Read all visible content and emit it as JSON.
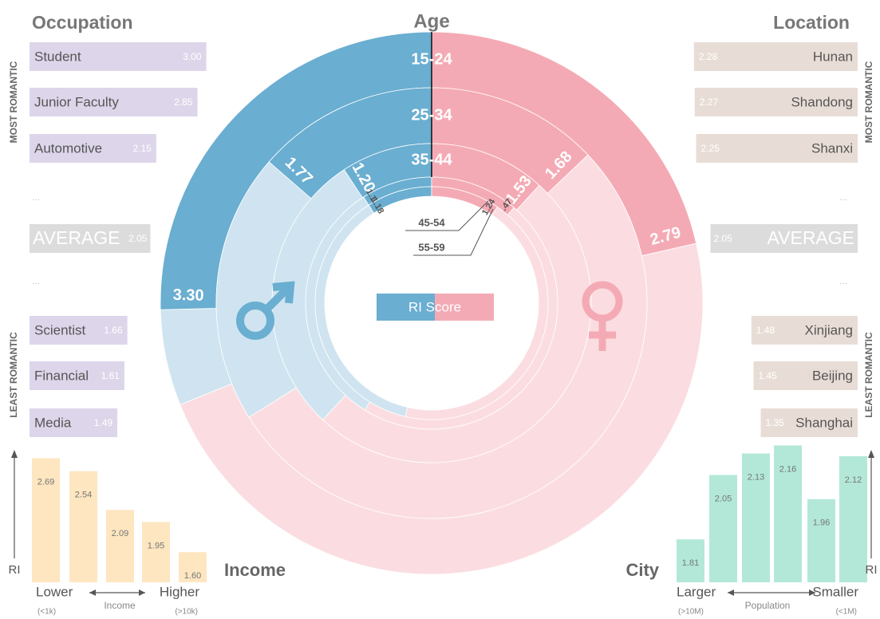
{
  "chart_data": [
    {
      "type": "radial",
      "title": "Age",
      "legend": "RI Score",
      "categories": [
        "15-24",
        "25-34",
        "35-44",
        "45-54",
        "55-59"
      ],
      "series": [
        {
          "color": "#6aaed1",
          "values": [
            3.3,
            1.77,
            1.2,
            1.18,
            1.18
          ],
          "value_labels": [
            "3.30",
            "1.77",
            "1.20",
            "1.18",
            "1.18"
          ]
        },
        {
          "color": "#f4aab4",
          "values": [
            2.79,
            1.68,
            1.53,
            1.47,
            1.24
          ],
          "value_labels": [
            "2.79",
            "1.68",
            "1.53",
            "1.47",
            "1.24"
          ]
        }
      ],
      "ylim": [
        0,
        6.5
      ]
    },
    {
      "type": "hbar",
      "side": "left",
      "title": "Occupation",
      "categories": [
        "Student",
        "Junior Faculty",
        "Automotive",
        "Scientist",
        "Financial",
        "Media"
      ],
      "values": [
        3.0,
        2.85,
        2.15,
        1.66,
        1.61,
        1.49
      ],
      "value_labels": [
        "3.00",
        "2.85",
        "2.15",
        "1.66",
        "1.61",
        "1.49"
      ],
      "average": {
        "label": "AVERAGE",
        "value": 2.05
      },
      "annotations": [
        "MOST ROMANTIC",
        "LEAST ROMANTIC",
        "..."
      ],
      "color": "#ddd5ea",
      "xlim": [
        0,
        3.1
      ]
    },
    {
      "type": "hbar",
      "side": "right",
      "title": "Location",
      "categories": [
        "Hunan",
        "Shandong",
        "Shanxi",
        "Xinjiang",
        "Beijing",
        "Shanghai"
      ],
      "values": [
        2.28,
        2.27,
        2.25,
        1.48,
        1.45,
        1.35
      ],
      "average": {
        "label": "AVERAGE",
        "value": 2.05
      },
      "annotations": [
        "MOST ROMANTIC",
        "LEAST ROMANTIC",
        "..."
      ],
      "color": "#e8ddd6",
      "xlim": [
        0,
        2.5
      ]
    },
    {
      "type": "bar",
      "side": "left",
      "title": "Income",
      "ylabel": "RI",
      "xlabel": "Income",
      "annotations": [
        "Lower",
        "Higher",
        "(<1k)",
        "(>10k)"
      ],
      "values": [
        2.69,
        2.54,
        2.09,
        1.95,
        1.6
      ],
      "value_labels": [
        "2.69",
        "2.54",
        "2.09",
        "1.95",
        "1.60"
      ],
      "color": "#fde6c0",
      "ylim": [
        1.25,
        2.75
      ]
    },
    {
      "type": "bar",
      "side": "right",
      "title": "City",
      "ylabel": "RI",
      "xlabel": "Population",
      "annotations": [
        "Larger",
        "Smaller",
        "(>10M)",
        "(<1M)"
      ],
      "values": [
        1.81,
        2.05,
        2.13,
        2.16,
        1.96,
        2.12
      ],
      "color": "#b3e8d8",
      "ylim": [
        1.65,
        2.2
      ]
    }
  ]
}
